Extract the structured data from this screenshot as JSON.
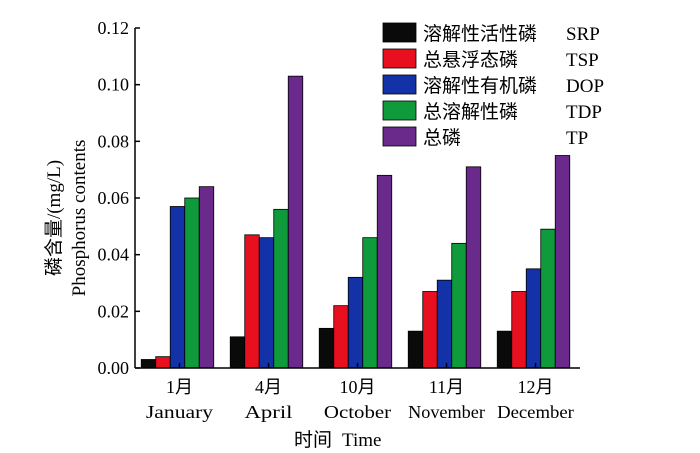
{
  "chart_data": {
    "type": "bar",
    "categories": [
      {
        "cn": "1月",
        "en": "January"
      },
      {
        "cn": "4月",
        "en": "April"
      },
      {
        "cn": "10月",
        "en": "October"
      },
      {
        "cn": "11月",
        "en": "November"
      },
      {
        "cn": "12月",
        "en": "December"
      }
    ],
    "series": [
      {
        "cn": "溶解性活性磷",
        "code": "SRP",
        "color": "#0a0a0a",
        "values": [
          0.003,
          0.011,
          0.014,
          0.013,
          0.013
        ]
      },
      {
        "cn": "总悬浮态磷",
        "code": "TSP",
        "color": "#e8101e",
        "values": [
          0.004,
          0.047,
          0.022,
          0.027,
          0.027
        ]
      },
      {
        "cn": "溶解性有机磷",
        "code": "DOP",
        "color": "#1432a8",
        "values": [
          0.057,
          0.046,
          0.032,
          0.031,
          0.035
        ]
      },
      {
        "cn": "总溶解性磷",
        "code": "TDP",
        "color": "#0f9a3c",
        "values": [
          0.06,
          0.056,
          0.046,
          0.044,
          0.049
        ]
      },
      {
        "cn": "总磷",
        "code": "TP",
        "color": "#6a2a8c",
        "values": [
          0.064,
          0.103,
          0.068,
          0.071,
          0.075
        ]
      }
    ],
    "ylabel_cn": "磷含量/(mg/L)",
    "ylabel_en": "Phosphorus contents",
    "xlabel_cn": "时间",
    "xlabel_en": "Time",
    "ylim": [
      0,
      0.12
    ],
    "yticks": [
      "0.00",
      "0.02",
      "0.04",
      "0.06",
      "0.08",
      "0.10",
      "0.12"
    ],
    "legend_position": "top-right",
    "grid": false
  }
}
